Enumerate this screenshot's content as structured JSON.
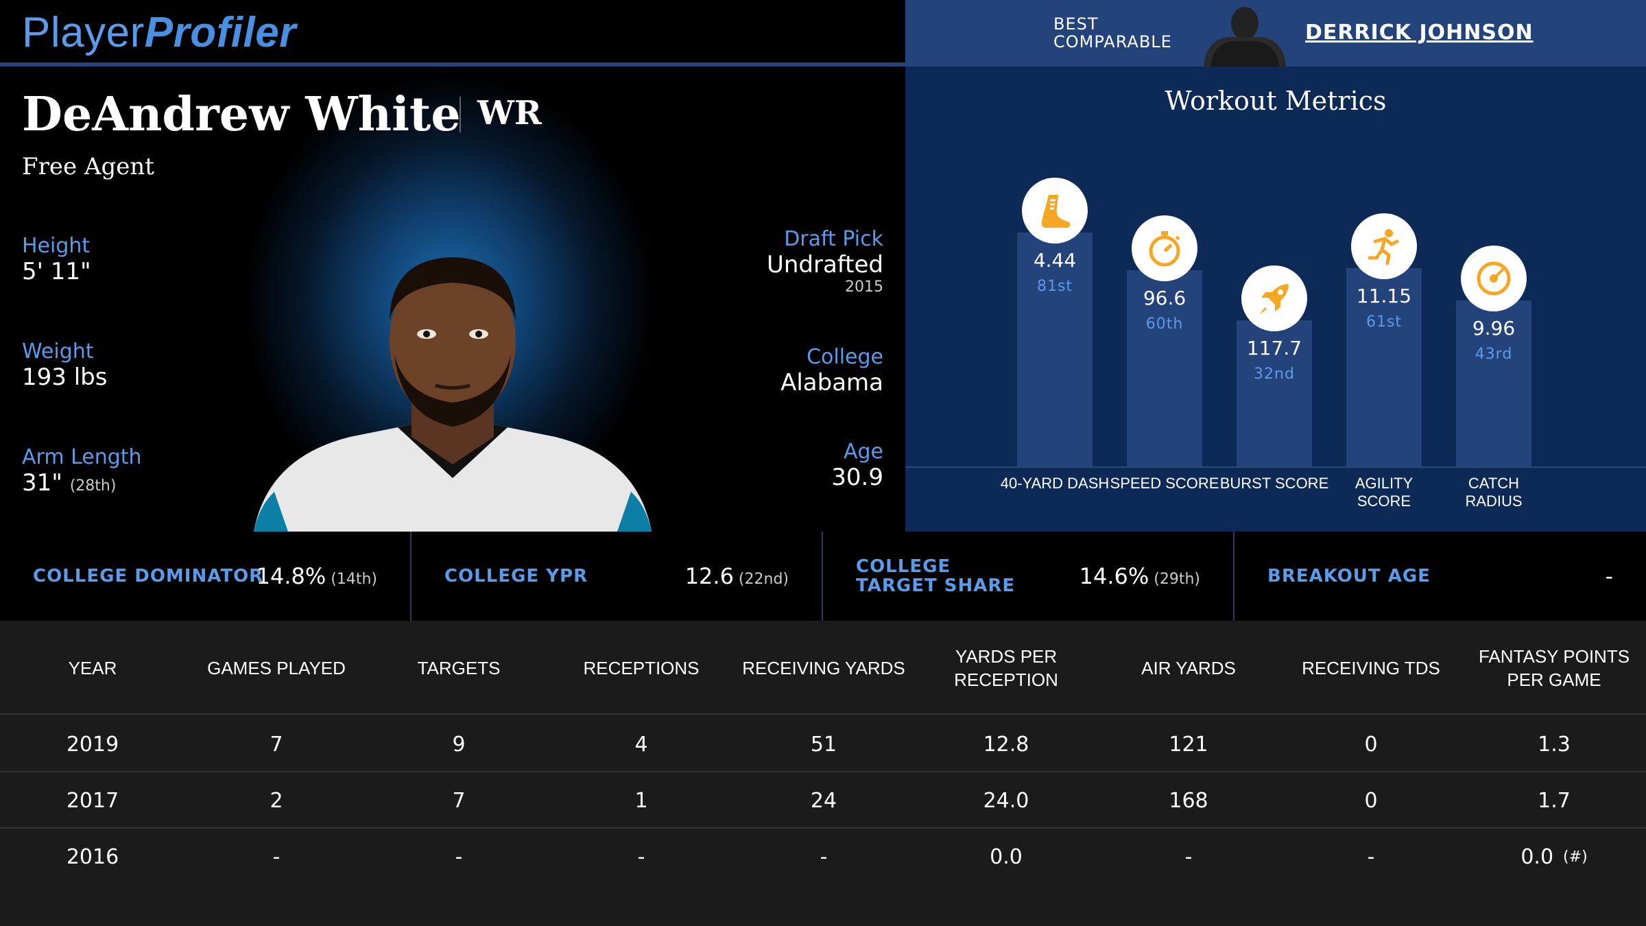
{
  "header": {
    "logo_part1": "Player",
    "logo_part2": "Profiler",
    "best_comparable_label": "BEST COMPARABLE",
    "best_comparable_name": "DERRICK JOHNSON"
  },
  "player": {
    "name": "DeAndrew White",
    "position": "WR",
    "team": "Free Agent",
    "height_label": "Height",
    "height": "5' 11\"",
    "weight_label": "Weight",
    "weight": "193 lbs",
    "arm_label": "Arm Length",
    "arm": "31\"",
    "arm_rank": "(28th)",
    "draft_label": "Draft Pick",
    "draft": "Undrafted",
    "draft_year": "2015",
    "college_label": "College",
    "college": "Alabama",
    "age_label": "Age",
    "age": "30.9"
  },
  "workout": {
    "title": "Workout Metrics",
    "metrics": [
      {
        "label": "40-YARD DASH",
        "value": "4.44",
        "rank": "81st",
        "percentile": 81,
        "icon": "running-shoe-icon"
      },
      {
        "label": "SPEED SCORE",
        "value": "96.6",
        "rank": "60th",
        "percentile": 60,
        "icon": "stopwatch-icon"
      },
      {
        "label": "BURST SCORE",
        "value": "117.7",
        "rank": "32nd",
        "percentile": 32,
        "icon": "rocket-icon"
      },
      {
        "label": "AGILITY SCORE",
        "value": "11.15",
        "rank": "61st",
        "percentile": 61,
        "icon": "sprinter-icon"
      },
      {
        "label": "CATCH RADIUS",
        "value": "9.96",
        "rank": "43rd",
        "percentile": 43,
        "icon": "target-icon"
      }
    ],
    "icon_color": "#f5a623"
  },
  "college_stats": [
    {
      "label": "COLLEGE DOMINATOR",
      "value": "14.8%",
      "rank": "(14th)"
    },
    {
      "label": "COLLEGE YPR",
      "value": "12.6",
      "rank": "(22nd)"
    },
    {
      "label": "COLLEGE TARGET SHARE",
      "value": "14.6%",
      "rank": "(29th)"
    },
    {
      "label": "BREAKOUT AGE",
      "value": "-",
      "rank": ""
    }
  ],
  "table": {
    "columns": [
      "YEAR",
      "GAMES PLAYED",
      "TARGETS",
      "RECEPTIONS",
      "RECEIVING YARDS",
      "YARDS PER RECEPTION",
      "AIR YARDS",
      "RECEIVING TDS",
      "FANTASY POINTS PER GAME"
    ],
    "rows": [
      [
        "2019",
        "7",
        "9",
        "4",
        "51",
        "12.8",
        "121",
        "0",
        "1.3"
      ],
      [
        "2017",
        "2",
        "7",
        "1",
        "24",
        "24.0",
        "168",
        "0",
        "1.7"
      ],
      [
        "2016",
        "-",
        "-",
        "-",
        "-",
        "0.0",
        "-",
        "-",
        "0.0"
      ]
    ],
    "last_row_note": "(#)"
  },
  "colors": {
    "accent_blue": "#5b9bea",
    "panel_blue": "#23437a",
    "dark_blue": "#0c2a55"
  }
}
